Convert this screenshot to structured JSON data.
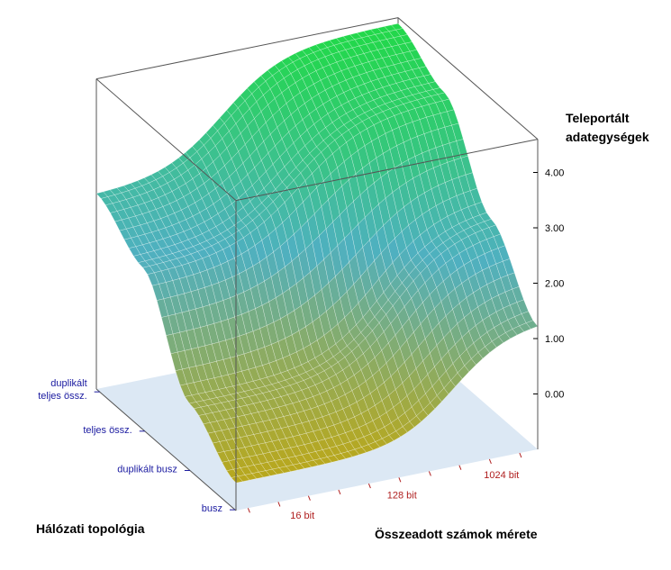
{
  "chart_data": {
    "type": "surface",
    "zlabel_lines": [
      "Teleportált",
      "adategységek"
    ],
    "xlabel": "Összeadott számok mérete",
    "ylabel": "Hálózati topológia",
    "x_ticks": [
      "16 bit",
      "128 bit",
      "1024 bit"
    ],
    "y_categories": [
      [
        "busz"
      ],
      [
        "duplikált busz"
      ],
      [
        "teljes össz."
      ],
      [
        "duplikált",
        "teljes össz."
      ]
    ],
    "z_ticks": [
      "0.00",
      "1.00",
      "2.00",
      "3.00",
      "4.00"
    ],
    "zlim": [
      -1,
      4.6
    ],
    "surface": {
      "description_rows": "value at each of 4 topology rows (busz .. duplikált teljes össz.) across x from small to large",
      "rows": [
        {
          "name_index": 0,
          "low": -0.5,
          "high": 1.3,
          "mid": 0.72,
          "steep": 11
        },
        {
          "name_index": 1,
          "low": 0.2,
          "high": 2.5,
          "mid": 0.66,
          "steep": 10
        },
        {
          "name_index": 2,
          "low": 1.9,
          "high": 4.0,
          "mid": 0.5,
          "steep": 9
        },
        {
          "name_index": 3,
          "low": 2.5,
          "high": 4.5,
          "mid": 0.42,
          "steep": 10
        }
      ]
    },
    "colors": {
      "low": "#b8a81e",
      "mid": "#4fb0c0",
      "high": "#22d84a",
      "mesh": "#ffffff",
      "floor": "#dce8f4",
      "frame": "#555555"
    }
  }
}
